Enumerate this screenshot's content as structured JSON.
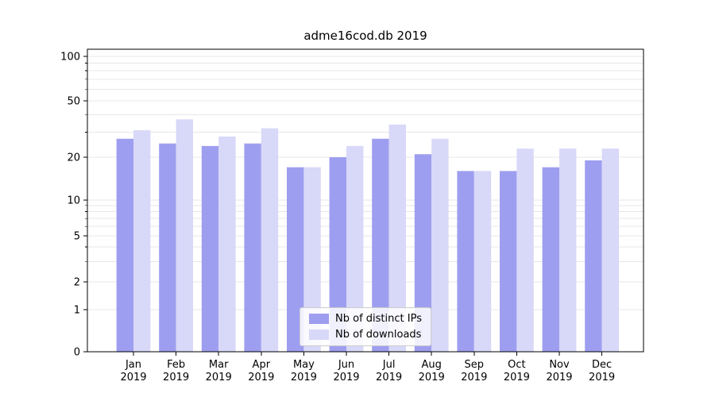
{
  "chart_data": {
    "type": "bar",
    "title": "adme16cod.db 2019",
    "categories": [
      "Jan",
      "Feb",
      "Mar",
      "Apr",
      "May",
      "Jun",
      "Jul",
      "Aug",
      "Sep",
      "Oct",
      "Nov",
      "Dec"
    ],
    "category_year": "2019",
    "series": [
      {
        "name": "Nb of distinct IPs",
        "color": "#9e9ef0",
        "values": [
          27,
          25,
          24,
          25,
          17,
          20,
          27,
          21,
          16,
          16,
          17,
          19
        ]
      },
      {
        "name": "Nb of downloads",
        "color": "#d8d8f8",
        "values": [
          31,
          37,
          28,
          32,
          17,
          24,
          34,
          27,
          16,
          23,
          23,
          23
        ]
      }
    ],
    "yscale": "symlog",
    "yticks": [
      0,
      1,
      2,
      5,
      10,
      20,
      50,
      100
    ],
    "yticks_minor": [
      3,
      4,
      6,
      7,
      8,
      9,
      30,
      40,
      60,
      70,
      80,
      90
    ],
    "ylim": [
      0,
      112
    ],
    "grid": true,
    "legend_position": "lower center"
  },
  "colors": {
    "background": "#ffffff",
    "grid": "#e7e7e7",
    "axis": "#000000",
    "legend_border": "#cccccc"
  }
}
